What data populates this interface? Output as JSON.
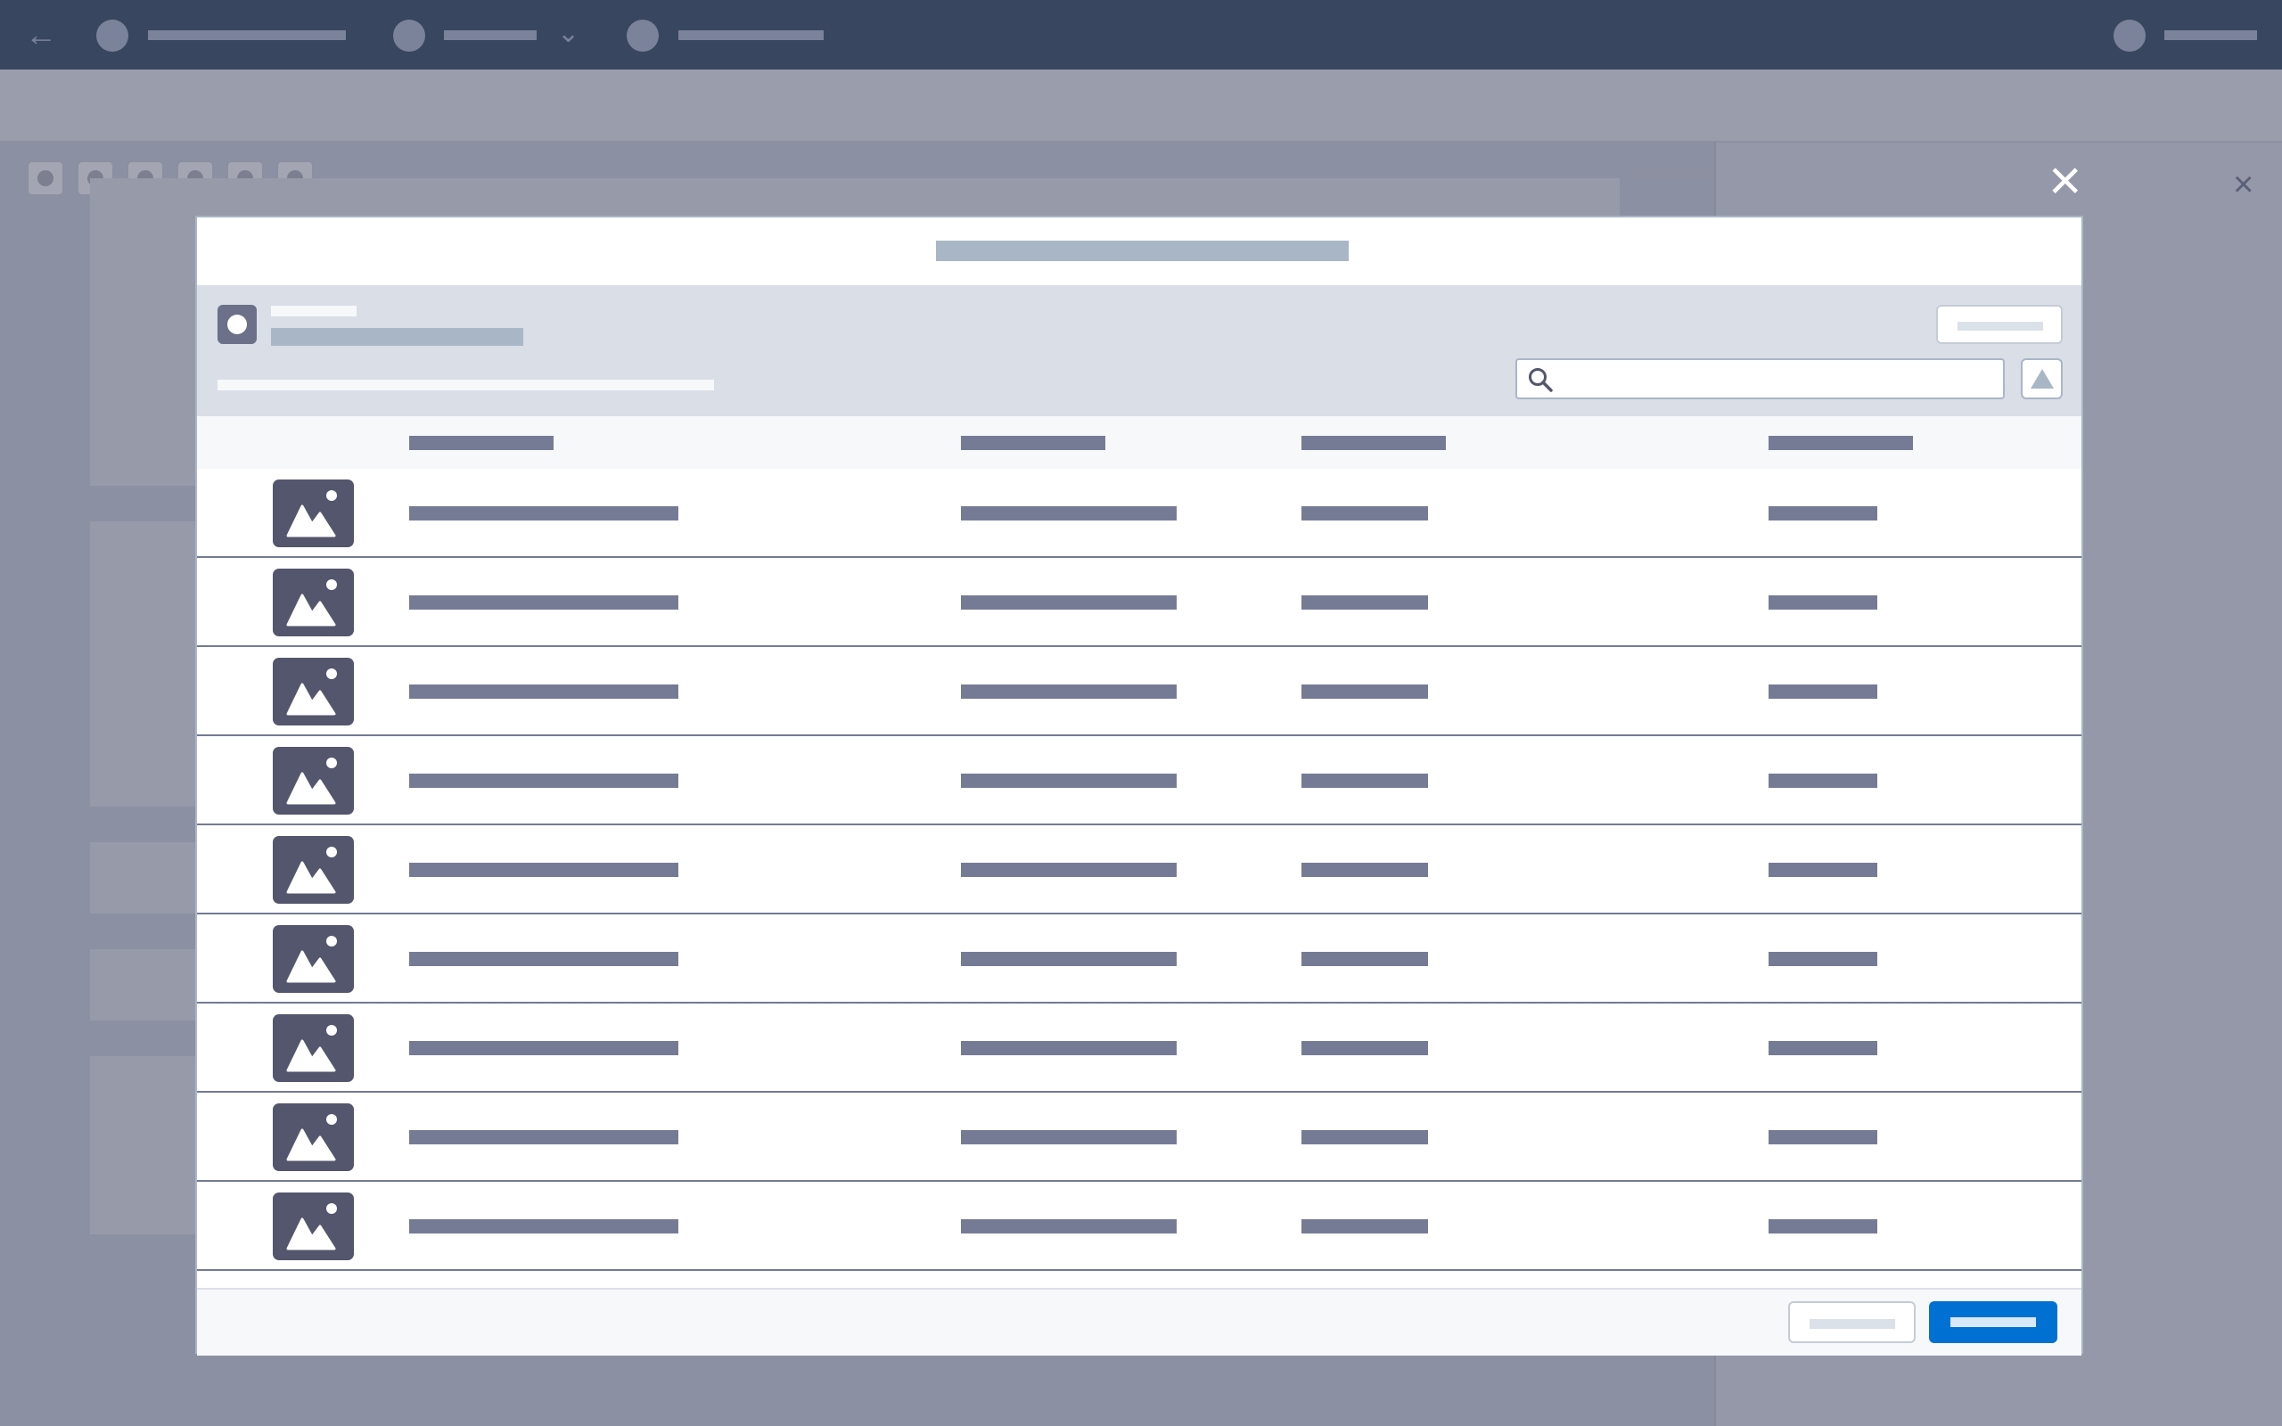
{
  "colors": {
    "nav_background": "#38465f",
    "overlay_background": "#8b90a2",
    "modal_border": "#a9b6c6",
    "filter_bar_background": "#d9dee7",
    "placeholder_text": "#767b95",
    "thumbnail": "#53566c",
    "primary_button": "#0070d2"
  },
  "modal": {
    "close_icon": "close-icon",
    "search": {
      "icon": "search-icon",
      "value": "",
      "placeholder": ""
    },
    "filter_button_icon": "triangle-icon",
    "avatar_icon": "circle-icon",
    "columns": 4,
    "rows": [
      {
        "icon": "image-icon"
      },
      {
        "icon": "image-icon"
      },
      {
        "icon": "image-icon"
      },
      {
        "icon": "image-icon"
      },
      {
        "icon": "image-icon"
      },
      {
        "icon": "image-icon"
      },
      {
        "icon": "image-icon"
      },
      {
        "icon": "image-icon"
      },
      {
        "icon": "image-icon"
      }
    ]
  }
}
